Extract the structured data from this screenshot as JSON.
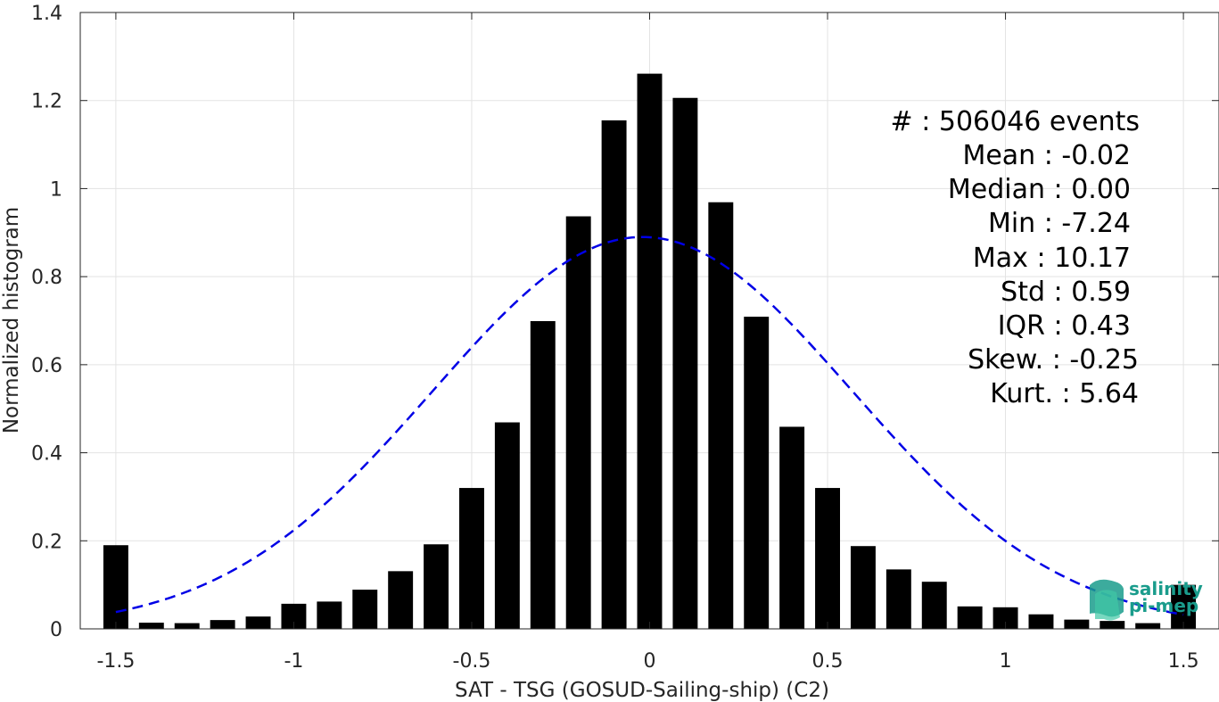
{
  "chart_data": {
    "type": "bar",
    "xlabel": "SAT - TSG (GOSUD-Sailing-ship) (C2)",
    "ylabel": "Normalized histogram",
    "xlim": [
      -1.6,
      1.6
    ],
    "ylim": [
      0,
      1.4
    ],
    "x_ticks": [
      -1.5,
      -1,
      -0.5,
      0,
      0.5,
      1,
      1.5
    ],
    "x_tick_labels": [
      "-1.5",
      "-1",
      "-0.5",
      "0",
      "0.5",
      "1",
      "1.5"
    ],
    "y_ticks": [
      0,
      0.2,
      0.4,
      0.6,
      0.8,
      1,
      1.2,
      1.4
    ],
    "y_tick_labels": [
      "0",
      "0.2",
      "0.4",
      "0.6",
      "0.8",
      "1",
      "1.2",
      "1.4"
    ],
    "grid": true,
    "bar_width": 0.07,
    "x": [
      -1.5,
      -1.4,
      -1.3,
      -1.2,
      -1.1,
      -1.0,
      -0.9,
      -0.8,
      -0.7,
      -0.6,
      -0.5,
      -0.4,
      -0.3,
      -0.2,
      -0.1,
      0.0,
      0.1,
      0.2,
      0.3,
      0.4,
      0.5,
      0.6,
      0.7,
      0.8,
      0.9,
      1.0,
      1.1,
      1.2,
      1.3,
      1.4,
      1.5
    ],
    "values": [
      0.19,
      0.014,
      0.013,
      0.02,
      0.028,
      0.057,
      0.062,
      0.089,
      0.131,
      0.192,
      0.32,
      0.469,
      0.699,
      0.937,
      1.155,
      1.261,
      1.206,
      0.969,
      0.709,
      0.459,
      0.32,
      0.188,
      0.135,
      0.107,
      0.051,
      0.049,
      0.033,
      0.021,
      0.018,
      0.013,
      0.1
    ],
    "fit_curve": {
      "type": "gaussian",
      "mean": -0.02,
      "std": 0.59,
      "peak": 0.89,
      "color": "#0000e6",
      "style": "dashed"
    },
    "bar_color": "#000000"
  },
  "stats": {
    "lines": [
      "#   : 506046 events",
      "Mean : -0.02",
      "Median : 0.00",
      "Min : -7.24",
      "Max : 10.17",
      "Std : 0.59",
      "IQR : 0.43",
      "Skew. : -0.25",
      "Kurt. : 5.64"
    ]
  },
  "logo": {
    "line1": "salinity",
    "line2": "pi-mep"
  }
}
